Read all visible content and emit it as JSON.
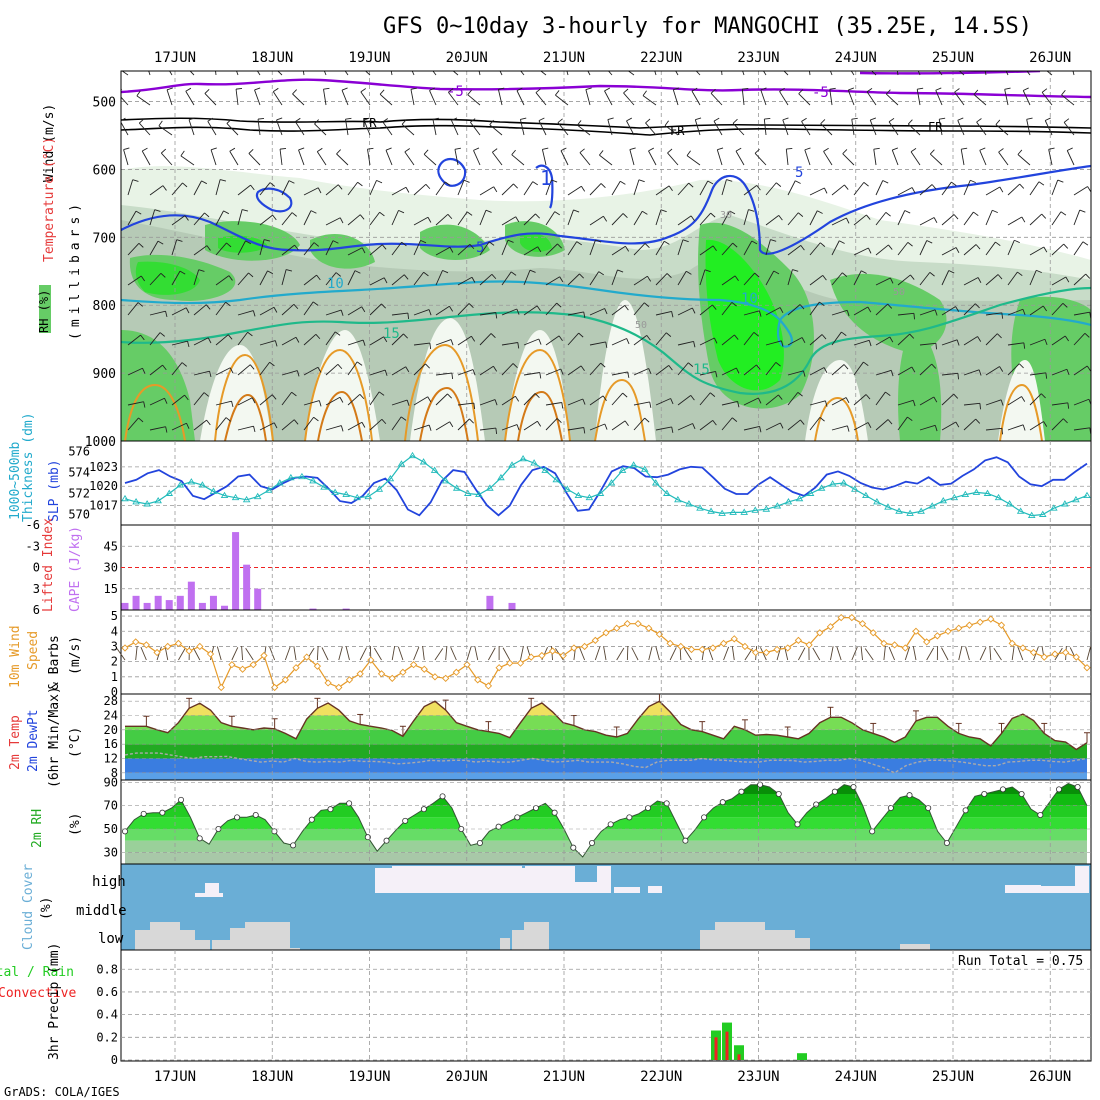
{
  "title": "GFS 0~10day 3-hourly for MANGOCHI (35.25E, 14.5S)",
  "footer": "GrADS: COLA/IGES",
  "dates": [
    "17JUN",
    "18JUN",
    "19JUN",
    "20JUN",
    "21JUN",
    "22JUN",
    "23JUN",
    "24JUN",
    "25JUN",
    "26JUN"
  ],
  "colors": {
    "purple": "#8a00d4",
    "blue": "#2244dd",
    "cyan_line": "#22aacc",
    "teal": "#1fb98a",
    "orange": "#e69a28",
    "rh_green": "#00dd00",
    "cape": "#c070f0",
    "cloud_blue": "#6aaed6",
    "precip_green": "#22cc22",
    "precip_red": "#ee2222",
    "wind": "#e69a28"
  },
  "labels": {
    "p1_wind": "Wind (m/s)",
    "p1_temp": "Temperature (°C)",
    "p1_rh": "RH (%)",
    "p1_mb": "(millibars)",
    "p2_thk": "1000~500mb",
    "p2_thk2": "Thickness (dm)",
    "p2_slp": "SLP (mb)",
    "p3_li": "Lifted Index",
    "p3_cape": "CAPE (J/kg)",
    "p4_a": "10m Wind",
    "p4_b": "Speed",
    "p4_c": "& Barbs",
    "p4_d": "(m/s)",
    "p5_a": "2m Temp",
    "p5_b": "2m DewPt",
    "p5_c": "(6hr Min/Max)",
    "p5_d": "(°C)",
    "p6_a": "2m RH",
    "p6_b": "(%)",
    "p7_a": "Cloud Cover",
    "p7_b": "(%)",
    "p8_a": "Total / Rain",
    "p8_b": "Convective",
    "p8_c": "3hr Precip (mm)",
    "run_total": "Run Total = 0.75"
  },
  "contour_labels": [
    "-5",
    "-5",
    "FR",
    "FR",
    "FR",
    "5",
    "5",
    "10",
    "10",
    "15",
    "15",
    "1",
    "5",
    "10",
    "10",
    "30",
    "50",
    "50"
  ],
  "chart_data": [
    {
      "type": "heatmap",
      "name": "pressure-time",
      "y_ticks": [
        500,
        600,
        700,
        800,
        900,
        1000
      ],
      "ylim": [
        1000,
        455
      ],
      "contour_labels": [
        "-5",
        "FR",
        "5",
        "10",
        "15"
      ]
    },
    {
      "type": "line",
      "name": "slp-thickness",
      "thickness_ticks": [
        570,
        572,
        574,
        576
      ],
      "slp_ticks": [
        1017,
        1020,
        1023
      ],
      "thickness": [
        571.5,
        571.2,
        571,
        571.3,
        572,
        572.8,
        573.1,
        572.8,
        572.2,
        571.8,
        571.6,
        571.4,
        571.7,
        572.3,
        573,
        573.5,
        573.6,
        573.2,
        572.6,
        572.1,
        571.9,
        571.6,
        571.7,
        572.4,
        573.4,
        574.8,
        575.6,
        575,
        574.2,
        573.2,
        572.5,
        572,
        571.9,
        572.5,
        573.5,
        574.7,
        575.3,
        574.9,
        574.2,
        573.3,
        572.4,
        571.8,
        571.6,
        572,
        573,
        574.2,
        574.7,
        574.3,
        573,
        572,
        571.4,
        571,
        570.6,
        570.3,
        570.1,
        570.2,
        570.2,
        570.4,
        570.5,
        570.8,
        571.2,
        571.5,
        572,
        572.5,
        572.9,
        573,
        572.4,
        571.8,
        571.2,
        570.7,
        570.3,
        570.1,
        570.3,
        570.8,
        571.3,
        571.6,
        571.9,
        572.1,
        572,
        571.6,
        571,
        570.3,
        569.9,
        570,
        570.6,
        571,
        571.4,
        571.8
      ],
      "slp": [
        1020.5,
        1021,
        1022,
        1022.5,
        1021.5,
        1020.8,
        1018.5,
        1018,
        1019,
        1020,
        1021.5,
        1021.8,
        1020,
        1019.5,
        1020.5,
        1021.3,
        1021.5,
        1021.3,
        1019.6,
        1017.7,
        1017.4,
        1018.5,
        1020.5,
        1021.2,
        1019.4,
        1016.4,
        1015.5,
        1017.5,
        1020.8,
        1022.5,
        1022.2,
        1019.5,
        1017,
        1015.5,
        1017,
        1020.2,
        1022.5,
        1023,
        1022,
        1019,
        1016.2,
        1016.4,
        1019.2,
        1022.3,
        1023.1,
        1022.8,
        1021.5,
        1021.4,
        1021.8,
        1022.6,
        1023,
        1022.9,
        1021.3,
        1019.6,
        1018.8,
        1018.8,
        1020.3,
        1021.4,
        1020.2,
        1019.1,
        1018.5,
        1019.8,
        1021.8,
        1022.3,
        1021.6,
        1020.5,
        1019.8,
        1019.5,
        1020,
        1020.7,
        1020.4,
        1021.4,
        1020.2,
        1020.4,
        1021.6,
        1022.6,
        1024,
        1024.5,
        1023.7,
        1021.5,
        1020.3,
        1020,
        1021,
        1021,
        1022.3,
        1023.5
      ]
    },
    {
      "type": "bar",
      "name": "cape-lifted-index",
      "cape_ticks": [
        15,
        30,
        45
      ],
      "li_ticks": [
        "-6",
        "-3",
        "0",
        "3",
        "6"
      ],
      "cape": [
        5,
        10,
        5,
        10,
        7,
        10,
        20,
        5,
        10,
        3,
        55,
        32,
        15,
        0,
        0,
        0,
        0,
        1,
        0,
        0,
        1,
        0,
        0,
        0,
        0,
        0,
        0,
        0,
        0,
        0,
        0,
        0,
        0,
        10,
        0,
        5,
        0,
        0,
        0,
        0,
        0,
        0,
        0,
        0,
        0,
        0,
        0,
        0,
        0,
        0,
        0,
        0,
        0,
        0,
        0,
        0,
        0,
        0,
        0,
        0,
        0,
        0,
        0,
        0,
        0,
        0,
        0,
        0,
        0,
        0,
        0,
        0,
        0,
        0,
        0,
        0,
        0,
        0,
        0,
        0,
        0,
        0,
        0,
        0,
        0,
        0,
        0,
        0
      ]
    },
    {
      "type": "line",
      "name": "10m-wind-speed",
      "ylim": [
        0,
        5
      ],
      "y_ticks": [
        0,
        1,
        2,
        3,
        4,
        5
      ],
      "values": [
        2.9,
        3.3,
        3.1,
        2.6,
        3,
        3.2,
        2.7,
        3,
        2.5,
        0.3,
        1.8,
        1.5,
        1.8,
        2.4,
        0.3,
        0.8,
        1.6,
        2.3,
        1.7,
        0.6,
        0.3,
        0.8,
        1.2,
        2.1,
        1.2,
        0.9,
        1.3,
        1.8,
        1.5,
        1,
        0.9,
        1.3,
        1.8,
        0.8,
        0.4,
        1.6,
        1.9,
        1.9,
        2.3,
        2.4,
        2.7,
        2.4,
        2.9,
        3,
        3.4,
        3.9,
        4.2,
        4.5,
        4.5,
        4.2,
        3.8,
        3.2,
        3,
        2.8,
        2.8,
        2.9,
        3.2,
        3.5,
        3,
        2.6,
        2.6,
        2.8,
        2.9,
        3.4,
        3.1,
        3.9,
        4.3,
        4.9,
        4.9,
        4.5,
        3.9,
        3.2,
        3.1,
        2.9,
        4,
        3.3,
        3.7,
        4,
        4.2,
        4.4,
        4.6,
        4.8,
        4.4,
        3.2,
        2.9,
        2.6,
        2.3,
        2.5,
        2.6,
        2.3,
        1.6
      ]
    },
    {
      "type": "area",
      "name": "2m-temp-dewpoint",
      "y_ticks": [
        8,
        12,
        16,
        20,
        24,
        28
      ],
      "ylim": [
        6,
        30
      ],
      "temp": [
        21,
        21,
        21,
        20,
        19.2,
        22,
        26,
        27.4,
        25.5,
        22,
        21,
        20.5,
        20,
        20.5,
        20.3,
        19,
        17.5,
        23,
        26,
        27.5,
        25.5,
        22.5,
        21.5,
        21,
        20.5,
        19.8,
        18.2,
        22.5,
        26.5,
        28,
        25.5,
        22,
        21,
        20,
        19.5,
        19,
        17.8,
        22,
        26,
        27.5,
        25,
        22,
        21.2,
        20,
        19.5,
        18.5,
        18,
        19,
        23,
        26.5,
        28,
        25,
        21.5,
        20,
        19.5,
        18.5,
        17.5,
        21,
        20,
        18.5,
        18.7,
        18.5,
        18,
        17.5,
        19,
        22,
        23.5,
        23.5,
        22,
        20,
        19,
        18,
        16.5,
        18,
        22.5,
        23.5,
        23.5,
        21,
        19,
        18,
        17.5,
        15.5,
        19,
        23.2,
        24.4,
        22.6,
        19,
        17,
        16.6,
        14.5,
        16.4
      ],
      "dewpt": [
        13,
        13.5,
        13.5,
        13.5,
        13,
        12.5,
        12,
        12.5,
        12.5,
        12.6,
        12,
        11.5,
        11,
        11.3,
        11,
        12,
        11.2,
        11,
        11.2,
        11,
        11.5,
        11.2,
        11.2,
        11,
        10.5,
        10.7,
        11,
        11.5,
        11.3,
        11.5,
        11.5,
        11,
        11.3,
        11,
        11,
        11.5,
        12,
        11.5,
        11,
        11.2,
        11.5,
        11,
        11,
        11,
        10.5,
        9.8,
        9.5,
        11,
        11.5,
        11.5,
        11.5,
        12,
        11.6,
        11.5,
        11.2,
        11,
        11,
        11.5,
        11.5,
        11.4,
        11,
        11.2,
        11.5,
        11.4,
        12,
        11.5,
        10.5,
        9.5,
        8,
        10,
        11,
        11.5,
        11.5,
        11.3,
        11,
        10.5,
        10,
        10,
        11,
        11.2,
        11.5,
        11.5,
        11.2,
        11,
        11.5,
        12
      ]
    },
    {
      "type": "area",
      "name": "2m-rh",
      "y_ticks": [
        30,
        50,
        70,
        90
      ],
      "ylim": [
        20,
        92
      ],
      "values": [
        48,
        58,
        63,
        64,
        64,
        68,
        75,
        60,
        42,
        37,
        50,
        57,
        60,
        60,
        62,
        58,
        48,
        38,
        36,
        48,
        58,
        66,
        67,
        72,
        72,
        60,
        43,
        31,
        40,
        49,
        57,
        62,
        67,
        72,
        78,
        68,
        50,
        36,
        38,
        48,
        52,
        56,
        60,
        64,
        68,
        72,
        64,
        50,
        34,
        26,
        38,
        48,
        54,
        58,
        60,
        63,
        68,
        74,
        72,
        56,
        40,
        49,
        60,
        68,
        73,
        76,
        82,
        88,
        88,
        86,
        80,
        64,
        54,
        64,
        71,
        76,
        82,
        88,
        86,
        70,
        48,
        58,
        68,
        77,
        79,
        75,
        68,
        48,
        38,
        52,
        66,
        78,
        80,
        82,
        84,
        86,
        80,
        67,
        62,
        73,
        84,
        89,
        86,
        70
      ]
    },
    {
      "type": "area",
      "name": "cloud-cover",
      "levels": [
        "high",
        "middle",
        "low"
      ]
    },
    {
      "type": "bar",
      "name": "3hr-precip",
      "y_ticks": [
        0,
        0.2,
        0.4,
        0.6,
        0.8
      ],
      "ylim": [
        0,
        0.97
      ],
      "total": [
        0.26,
        0.33,
        0.13,
        0.06
      ],
      "convective": [
        0.2,
        0.25,
        0.05,
        0.0
      ]
    }
  ]
}
